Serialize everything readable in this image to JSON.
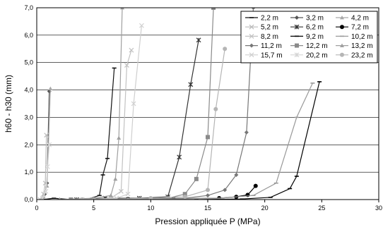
{
  "chart_data": {
    "type": "line",
    "title": "",
    "xlabel": "Pression appliquée P (MPa)",
    "ylabel": "h60 - h30 (mm)",
    "xlim": [
      0,
      30
    ],
    "ylim": [
      0,
      7
    ],
    "x_ticks": [
      "0",
      "5",
      "10",
      "15",
      "20",
      "25",
      "30"
    ],
    "y_ticks": [
      "0,0",
      "1,0",
      "2,0",
      "3,0",
      "4,0",
      "5,0",
      "6,0",
      "7,0"
    ],
    "grid": "horizontal",
    "legend_position": "top-right",
    "series": [
      {
        "name": "2,2 m",
        "color": "#111111",
        "marker": "dash",
        "points": [
          [
            0.5,
            0.0
          ],
          [
            1.5,
            0.05
          ],
          [
            3.0,
            0.0
          ],
          [
            4.5,
            0.02
          ],
          [
            5.5,
            0.15
          ],
          [
            5.8,
            0.9
          ],
          [
            6.2,
            1.5
          ],
          [
            6.8,
            4.8
          ]
        ]
      },
      {
        "name": "3,2 m",
        "color": "#555555",
        "marker": "diamond",
        "points": [
          [
            0.5,
            0.05
          ],
          [
            0.7,
            0.2
          ],
          [
            0.9,
            0.6
          ],
          [
            1.1,
            3.95
          ]
        ]
      },
      {
        "name": "4,2 m",
        "color": "#a8a8a8",
        "marker": "triangle",
        "points": [
          [
            0.6,
            0.1
          ],
          [
            0.9,
            0.5
          ],
          [
            1.2,
            4.05
          ]
        ]
      },
      {
        "name": "5,2 m",
        "color": "#bbbbbb",
        "marker": "x",
        "points": [
          [
            0.3,
            0.0
          ],
          [
            0.6,
            0.2
          ],
          [
            0.75,
            0.6
          ],
          [
            0.85,
            2.35
          ]
        ]
      },
      {
        "name": "6,2 m",
        "color": "#333333",
        "marker": "star",
        "points": [
          [
            3.5,
            0.0
          ],
          [
            6.0,
            0.05
          ],
          [
            9.0,
            0.05
          ],
          [
            11.5,
            0.1
          ],
          [
            12.5,
            1.55
          ],
          [
            13.5,
            4.2
          ],
          [
            14.2,
            5.82
          ]
        ]
      },
      {
        "name": "7,2 m",
        "color": "#000000",
        "marker": "circle",
        "points": [
          [
            4.0,
            0.0
          ],
          [
            8.0,
            0.02
          ],
          [
            12.0,
            0.03
          ],
          [
            16.0,
            0.05
          ],
          [
            17.5,
            0.1
          ],
          [
            18.5,
            0.17
          ],
          [
            19.2,
            0.5
          ]
        ]
      },
      {
        "name": "8,2 m",
        "color": "#c2c2c2",
        "marker": "x",
        "points": [
          [
            5.0,
            0.0
          ],
          [
            6.5,
            0.05
          ],
          [
            7.4,
            0.3
          ],
          [
            7.9,
            4.9
          ],
          [
            8.3,
            5.45
          ]
        ]
      },
      {
        "name": "9,2 m",
        "color": "#000000",
        "marker": "dash",
        "points": [
          [
            3.0,
            0.0
          ],
          [
            8.0,
            0.0
          ],
          [
            14.0,
            0.0
          ],
          [
            18.0,
            0.02
          ],
          [
            20.5,
            0.08
          ],
          [
            22.2,
            0.4
          ],
          [
            22.8,
            0.85
          ],
          [
            24.8,
            4.3
          ]
        ]
      },
      {
        "name": "10,2 m",
        "color": "#999999",
        "marker": "dash",
        "points": [
          [
            4.0,
            0.0
          ],
          [
            10.0,
            0.02
          ],
          [
            16.0,
            0.05
          ],
          [
            19.0,
            0.15
          ],
          [
            21.0,
            0.6
          ],
          [
            22.8,
            3.0
          ],
          [
            24.2,
            4.25
          ]
        ]
      },
      {
        "name": "11,2 m",
        "color": "#777777",
        "marker": "diamond",
        "points": [
          [
            2.0,
            0.0
          ],
          [
            8.0,
            0.02
          ],
          [
            13.0,
            0.05
          ],
          [
            15.0,
            0.15
          ],
          [
            16.5,
            0.35
          ],
          [
            17.5,
            0.9
          ],
          [
            18.4,
            2.45
          ],
          [
            19.0,
            7.0
          ]
        ]
      },
      {
        "name": "12,2 m",
        "color": "#8a8a8a",
        "marker": "square",
        "points": [
          [
            3.0,
            0.0
          ],
          [
            9.0,
            0.02
          ],
          [
            11.5,
            0.05
          ],
          [
            13.0,
            0.2
          ],
          [
            14.0,
            0.75
          ],
          [
            15.0,
            2.28
          ],
          [
            15.5,
            7.0
          ]
        ]
      },
      {
        "name": "13,2 m",
        "color": "#a0a0a0",
        "marker": "triangle",
        "points": [
          [
            2.0,
            0.0
          ],
          [
            5.0,
            0.05
          ],
          [
            6.5,
            0.15
          ],
          [
            6.9,
            0.75
          ],
          [
            7.2,
            2.25
          ],
          [
            7.5,
            7.0
          ]
        ]
      },
      {
        "name": "15,7 m",
        "color": "#cfcfcf",
        "marker": "x",
        "points": [
          [
            4.0,
            0.0
          ],
          [
            7.0,
            0.05
          ],
          [
            8.0,
            0.2
          ],
          [
            8.5,
            3.5
          ],
          [
            9.2,
            6.35
          ]
        ]
      },
      {
        "name": "20,2 m",
        "color": "#d5d5d5",
        "marker": "star",
        "points": [
          [
            0.5,
            0.05
          ],
          [
            0.8,
            0.3
          ],
          [
            0.95,
            1.2
          ],
          [
            1.1,
            2.0
          ]
        ]
      },
      {
        "name": "23,2 m",
        "color": "#b5b5b5",
        "marker": "circle",
        "points": [
          [
            4.0,
            0.0
          ],
          [
            10.0,
            0.05
          ],
          [
            13.0,
            0.1
          ],
          [
            15.0,
            0.35
          ],
          [
            15.7,
            3.3
          ],
          [
            16.5,
            5.5
          ]
        ]
      }
    ]
  }
}
